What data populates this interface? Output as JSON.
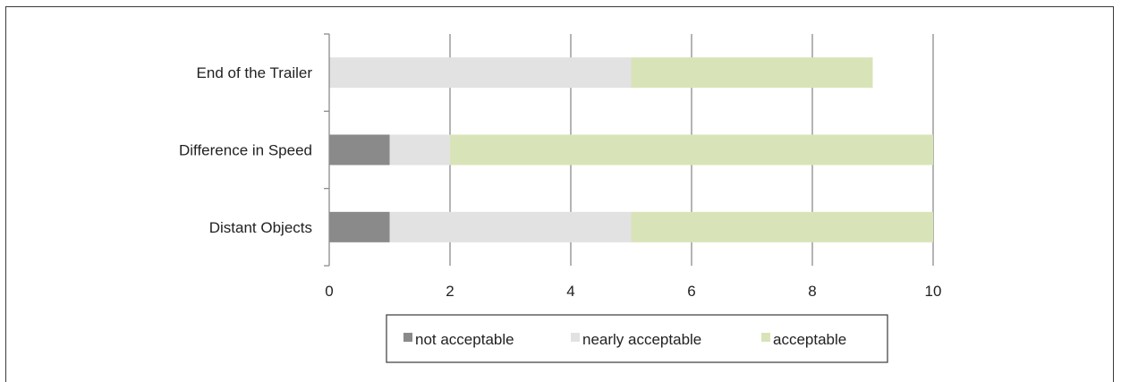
{
  "chart_data": {
    "type": "bar",
    "orientation": "horizontal",
    "stacked": true,
    "categories": [
      "End of the Trailer",
      "Difference in Speed",
      "Distant Objects"
    ],
    "series": [
      {
        "name": "not acceptable",
        "color": "#8a8a8a",
        "values": [
          0,
          1,
          1
        ]
      },
      {
        "name": "nearly acceptable",
        "color": "#e2e2e2",
        "values": [
          5,
          1,
          4
        ]
      },
      {
        "name": "acceptable",
        "color": "#d8e4b8",
        "values": [
          4,
          8,
          5
        ]
      }
    ],
    "xlim": [
      0,
      10
    ],
    "xticks": [
      "0",
      "2",
      "4",
      "6",
      "8",
      "10"
    ],
    "grid": "vertical",
    "legend_position": "bottom"
  }
}
